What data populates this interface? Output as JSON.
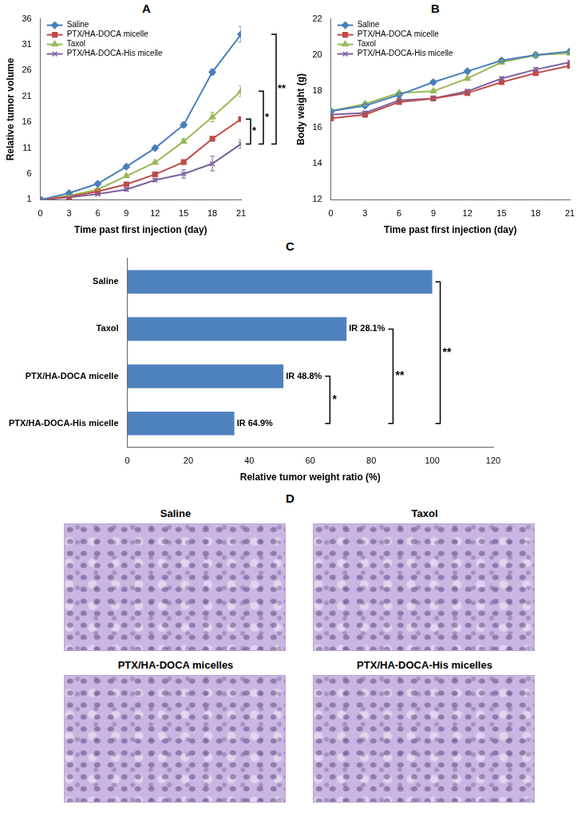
{
  "chart_data": [
    {
      "panel": "A",
      "type": "line",
      "x": [
        0,
        3,
        6,
        9,
        12,
        15,
        18,
        21
      ],
      "xlim": [
        0,
        21
      ],
      "xticks": [
        0,
        3,
        6,
        9,
        12,
        15,
        18,
        21
      ],
      "ylim": [
        1,
        36
      ],
      "yticks": [
        1,
        6,
        11,
        16,
        21,
        26,
        31,
        36
      ],
      "x_label": "Time past first injection (day)",
      "y_label": "Relative tumor volume",
      "grid": false,
      "legend": "upper left",
      "series": [
        {
          "name": "Saline",
          "color": "#4a7ebb",
          "marker": "diamond",
          "values": [
            1,
            2.3,
            4.1,
            7.4,
            11,
            15.5,
            25.7,
            33
          ],
          "errors": [
            0,
            0.2,
            0.2,
            0.2,
            0.2,
            0.5,
            0.5,
            1.5
          ]
        },
        {
          "name": "PTX/HA-DOCA micelle",
          "color": "#be4b48",
          "marker": "square",
          "values": [
            1,
            1.6,
            2.6,
            4,
            5.9,
            8.3,
            12.8,
            16.6
          ],
          "errors": [
            0,
            0.1,
            0.2,
            0.2,
            0.2,
            0.3,
            0.3,
            0.3
          ]
        },
        {
          "name": "Taxol",
          "color": "#98b954",
          "marker": "triangle",
          "values": [
            1,
            1.8,
            3,
            5.6,
            8.2,
            12.3,
            17,
            22
          ],
          "errors": [
            0,
            0.1,
            0.2,
            0.2,
            0.2,
            0.4,
            0.9,
            1
          ]
        },
        {
          "name": "PTX/HA-DOCA-His micelle",
          "color": "#7d60a0",
          "marker": "x",
          "values": [
            1,
            1.5,
            2.1,
            3,
            4.8,
            6,
            8,
            11.8
          ],
          "errors": [
            0,
            0.1,
            0.2,
            0.3,
            0.3,
            0.8,
            1.4,
            0.8
          ]
        }
      ],
      "brackets": [
        {
          "between": [
            "PTX/HA-DOCA micelle",
            "PTX/HA-DOCA-His micelle"
          ],
          "label": "*"
        },
        {
          "between": [
            "Taxol",
            "PTX/HA-DOCA-His micelle"
          ],
          "label": "*"
        },
        {
          "between": [
            "Saline",
            "PTX/HA-DOCA-His micelle"
          ],
          "label": "**"
        }
      ]
    },
    {
      "panel": "B",
      "type": "line",
      "x": [
        0,
        3,
        6,
        9,
        12,
        15,
        18,
        21
      ],
      "xlim": [
        0,
        21
      ],
      "xticks": [
        0,
        3,
        6,
        9,
        12,
        15,
        18,
        21
      ],
      "ylim": [
        12,
        22
      ],
      "yticks": [
        12,
        14,
        16,
        18,
        20,
        22
      ],
      "x_label": "Time past first injection (day)",
      "y_label": "Body weight (g)",
      "grid": false,
      "legend": "upper left",
      "series": [
        {
          "name": "Saline",
          "color": "#4a7ebb",
          "marker": "diamond",
          "values": [
            16.9,
            17.2,
            17.8,
            18.5,
            19.1,
            19.7,
            20,
            20.2
          ],
          "errors": [
            0.1,
            0.1,
            0.1,
            0.1,
            0.1,
            0.1,
            0.15,
            0.1
          ]
        },
        {
          "name": "PTX/HA-DOCA micelle",
          "color": "#be4b48",
          "marker": "square",
          "values": [
            16.5,
            16.7,
            17.4,
            17.6,
            17.9,
            18.5,
            19,
            19.4
          ],
          "errors": [
            0.1,
            0.1,
            0.1,
            0.1,
            0.1,
            0.1,
            0.1,
            0.1
          ]
        },
        {
          "name": "Taxol",
          "color": "#98b954",
          "marker": "triangle",
          "values": [
            16.9,
            17.3,
            17.9,
            18,
            18.7,
            19.6,
            20,
            20.1
          ],
          "errors": [
            0.1,
            0.1,
            0.1,
            0.1,
            0.1,
            0.1,
            0.1,
            0.1
          ]
        },
        {
          "name": "PTX/HA-DOCA-His micelle",
          "color": "#7d60a0",
          "marker": "x",
          "values": [
            16.7,
            16.8,
            17.5,
            17.6,
            18,
            18.7,
            19.2,
            19.6
          ],
          "errors": [
            0.1,
            0.1,
            0.1,
            0.1,
            0.1,
            0.1,
            0.1,
            0.1
          ]
        }
      ]
    },
    {
      "panel": "C",
      "type": "bar",
      "orientation": "horizontal",
      "categories": [
        "Saline",
        "Taxol",
        "PTX/HA-DOCA micelle",
        "PTX/HA-DOCA-His micelle"
      ],
      "values": [
        100,
        71.9,
        51.2,
        35.1
      ],
      "color": "#4f81bd",
      "xlim": [
        0,
        120
      ],
      "xticks": [
        0,
        20,
        40,
        60,
        80,
        100,
        120
      ],
      "x_label": "Relative tumor weight ratio (%)",
      "grid": false,
      "annotations": [
        {
          "category": "Taxol",
          "label": "IR 28.1%"
        },
        {
          "category": "PTX/HA-DOCA micelle",
          "label": "IR 48.8%"
        },
        {
          "category": "PTX/HA-DOCA-His micelle",
          "label": "IR 64.9%"
        }
      ],
      "brackets": [
        {
          "between": [
            "PTX/HA-DOCA micelle",
            "PTX/HA-DOCA-His micelle"
          ],
          "label": "*"
        },
        {
          "between": [
            "Taxol",
            "PTX/HA-DOCA-His micelle"
          ],
          "label": "**"
        },
        {
          "between": [
            "Saline",
            "PTX/HA-DOCA-His micelle"
          ],
          "label": "**"
        }
      ]
    }
  ],
  "image_panel": {
    "panel": "D",
    "titles": [
      "Saline",
      "Taxol",
      "PTX/HA-DOCA micelles",
      "PTX/HA-DOCA-His micelles"
    ]
  }
}
